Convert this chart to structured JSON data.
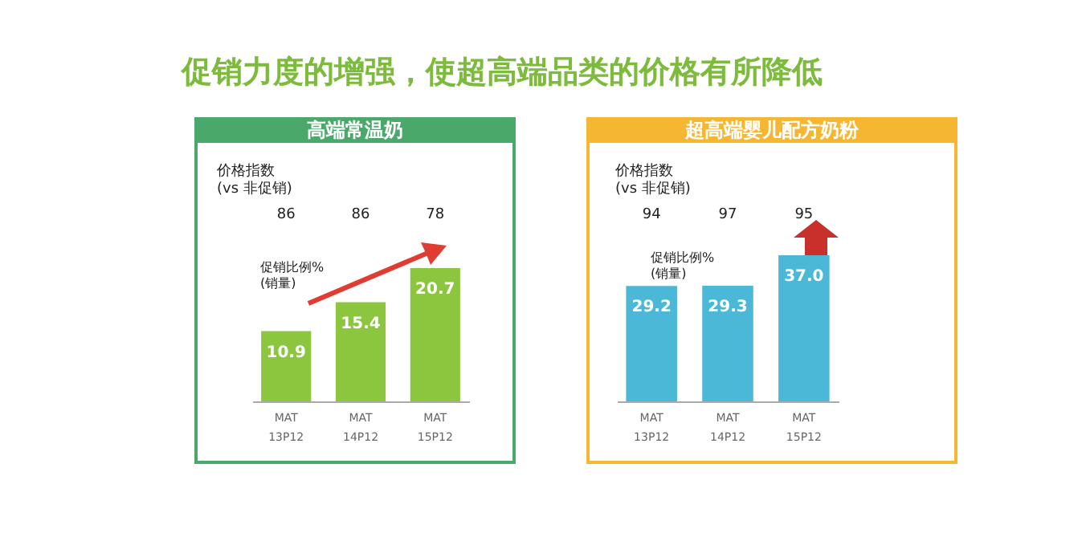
{
  "chart_data": [
    {
      "type": "other",
      "title": "促销力度的增强，使超高端品类的价格有所降低"
    },
    {
      "type": "bar",
      "title": "高端常温奶",
      "categories": [
        "MAT 13P12",
        "MAT 14P12",
        "MAT 15P12"
      ],
      "values": [
        10.9,
        15.4,
        20.7
      ],
      "value_labels": [
        "10.9",
        "15.4",
        "20.7"
      ],
      "color": "#8cc63f",
      "annotations": [
        "价格指数\n(vs 非促销)",
        "促销比例%\n(销量)",
        "86",
        "86",
        "78"
      ]
    },
    {
      "type": "bar",
      "title": "超高端婴儿配方奶粉",
      "categories": [
        "MAT 13P12",
        "MAT 14P12",
        "MAT 15P12"
      ],
      "values": [
        29.2,
        29.3,
        37.0
      ],
      "value_labels": [
        "29.2",
        "29.3",
        "37.0"
      ],
      "color": "#4bb8d8",
      "annotations": [
        "价格指数\n(vs 非促销)",
        "促销比例%\n(销量)",
        "94",
        "97",
        "95"
      ]
    }
  ]
}
